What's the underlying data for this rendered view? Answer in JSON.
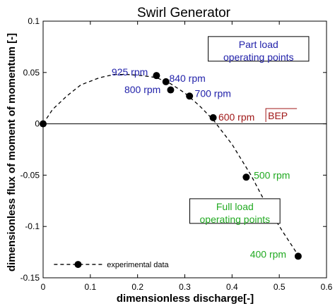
{
  "chart_data": {
    "type": "scatter",
    "title": "Swirl Generator",
    "xlabel": "dimensionless discharge[-]",
    "ylabel": "dimensionless flux of moment of momentum [-]",
    "xlim": [
      0,
      0.6
    ],
    "ylim": [
      -0.15,
      0.1
    ],
    "x_ticks": [
      0,
      0.1,
      0.2,
      0.3,
      0.4,
      0.5,
      0.6
    ],
    "x_tick_labels": [
      "0",
      "0.1",
      "0.2",
      "0.3",
      "0.4",
      "0.5",
      "0.6"
    ],
    "y_ticks": [
      -0.15,
      -0.1,
      -0.05,
      0,
      0.05,
      0.1
    ],
    "y_tick_labels": [
      "-0.15",
      "-0.1",
      "-0.05",
      "0",
      "0.05",
      "0.1"
    ],
    "grid": false,
    "zero_line": true,
    "legend_position": "bottom-left",
    "series": [
      {
        "name": "experimental data",
        "marker": "circle",
        "line_style": "dashed",
        "color": "#000000",
        "points": [
          {
            "x": 0.0,
            "y": 0.0,
            "label": ""
          },
          {
            "x": 0.24,
            "y": 0.047,
            "label": "925 rpm"
          },
          {
            "x": 0.26,
            "y": 0.041,
            "label": "840 rpm"
          },
          {
            "x": 0.27,
            "y": 0.033,
            "label": "800 rpm"
          },
          {
            "x": 0.31,
            "y": 0.027,
            "label": "700 rpm"
          },
          {
            "x": 0.36,
            "y": 0.006,
            "label": "600 rpm"
          },
          {
            "x": 0.43,
            "y": -0.052,
            "label": "500 rpm"
          },
          {
            "x": 0.54,
            "y": -0.129,
            "label": "400 rpm"
          }
        ]
      }
    ],
    "fit_curve": [
      [
        0.0,
        0.0
      ],
      [
        0.02,
        0.014
      ],
      [
        0.05,
        0.027
      ],
      [
        0.08,
        0.038
      ],
      [
        0.12,
        0.045
      ],
      [
        0.15,
        0.048
      ],
      [
        0.18,
        0.048
      ],
      [
        0.21,
        0.047
      ],
      [
        0.24,
        0.045
      ],
      [
        0.27,
        0.039
      ],
      [
        0.3,
        0.03
      ],
      [
        0.33,
        0.018
      ],
      [
        0.36,
        0.004
      ],
      [
        0.4,
        -0.02
      ],
      [
        0.44,
        -0.05
      ],
      [
        0.48,
        -0.085
      ],
      [
        0.51,
        -0.107
      ],
      [
        0.54,
        -0.128
      ]
    ],
    "annotations": [
      {
        "text": "925 rpm",
        "color": "#2222aa"
      },
      {
        "text": "840 rpm",
        "color": "#2222aa"
      },
      {
        "text": "800 rpm",
        "color": "#2222aa"
      },
      {
        "text": "700 rpm",
        "color": "#2222aa"
      },
      {
        "text": "600 rpm",
        "color": "#a01818"
      },
      {
        "text": "BEP",
        "color": "#a01818"
      },
      {
        "text": "500 rpm",
        "color": "#22aa22"
      },
      {
        "text": "400 rpm",
        "color": "#22aa22"
      }
    ],
    "text_boxes": [
      {
        "lines": [
          "Part load",
          "operating points"
        ],
        "color": "#2222aa"
      },
      {
        "lines": [
          "Full load",
          "operating points"
        ],
        "color": "#22aa22"
      }
    ]
  }
}
